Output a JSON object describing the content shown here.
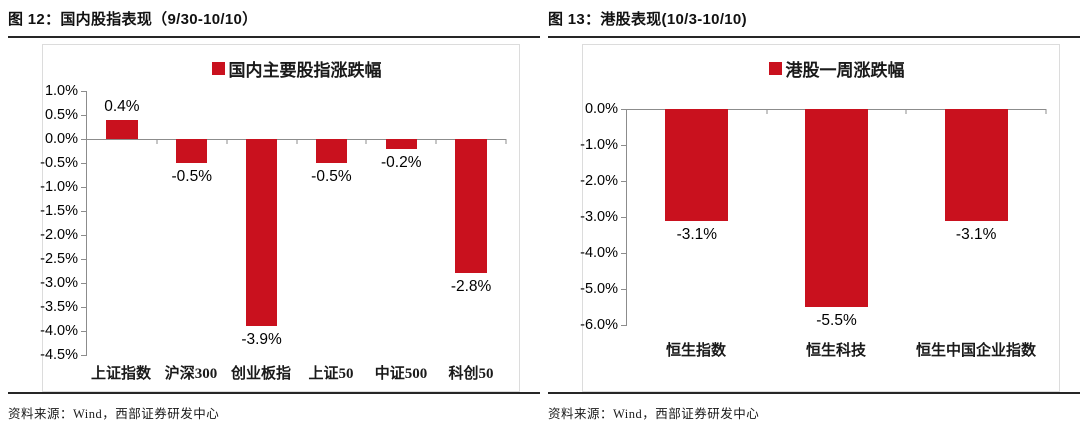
{
  "page": {
    "background": "#ffffff",
    "accent_color": "#C9111E",
    "axis_color": "#8c8c8c"
  },
  "chart_data": [
    {
      "type": "bar",
      "panel_title": "图 12：国内股指表现（9/30-10/10）",
      "legend": "国内主要股指涨跌幅",
      "legend_position": "top-center",
      "grid": false,
      "categories": [
        "上证指数",
        "沪深300",
        "创业板指",
        "上证50",
        "中证500",
        "科创50"
      ],
      "values": [
        0.4,
        -0.5,
        -3.9,
        -0.5,
        -0.2,
        -2.8
      ],
      "value_labels": [
        "0.4%",
        "-0.5%",
        "-3.9%",
        "-0.5%",
        "-0.2%",
        "-2.8%"
      ],
      "y_ticks": [
        "1.0%",
        "0.5%",
        "0.0%",
        "-0.5%",
        "-1.0%",
        "-1.5%",
        "-2.0%",
        "-2.5%",
        "-3.0%",
        "-3.5%",
        "-4.0%",
        "-4.5%"
      ],
      "ylim": [
        -4.5,
        1.0
      ],
      "ylabel": "",
      "xlabel": "",
      "bar_color": "#C9111E",
      "source": "资料来源：Wind，西部证券研发中心"
    },
    {
      "type": "bar",
      "panel_title": "图 13：港股表现(10/3-10/10)",
      "legend": "港股一周涨跌幅",
      "legend_position": "top-center",
      "grid": false,
      "categories": [
        "恒生指数",
        "恒生科技",
        "恒生中国企业指数"
      ],
      "values": [
        -3.1,
        -5.5,
        -3.1
      ],
      "value_labels": [
        "-3.1%",
        "-5.5%",
        "-3.1%"
      ],
      "y_ticks": [
        "0.0%",
        "-1.0%",
        "-2.0%",
        "-3.0%",
        "-4.0%",
        "-5.0%",
        "-6.0%"
      ],
      "ylim": [
        -6.0,
        0.0
      ],
      "ylabel": "",
      "xlabel": "",
      "bar_color": "#C9111E",
      "source": "资料来源：Wind，西部证券研发中心"
    }
  ]
}
